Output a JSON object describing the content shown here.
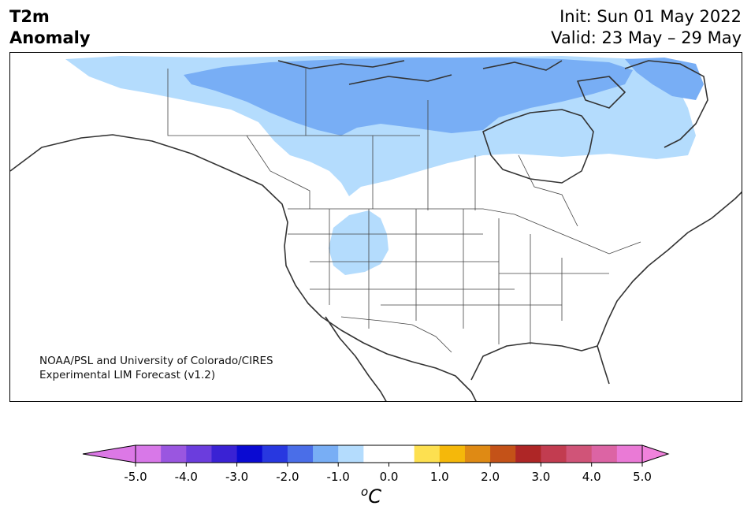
{
  "title": {
    "variable_line1": "T2m",
    "variable_line2": "Anomaly",
    "init_label": "Init: Sun 01 May 2022",
    "valid_label": "Valid: 23 May – 29 May"
  },
  "credit": {
    "line1": "NOAA/PSL and University of Colorado/CIRES",
    "line2": "Experimental LIM Forecast (v1.2)"
  },
  "colorbar": {
    "unit_sup": "o",
    "unit_main": "C",
    "ticks": [
      "-5.0",
      "-4.0",
      "-3.0",
      "-2.0",
      "-1.0",
      "0.0",
      "1.0",
      "2.0",
      "3.0",
      "4.0",
      "5.0"
    ],
    "underflow_color": "#dc78e6",
    "overflow_color": "#f082dc",
    "colors": [
      "#d878e8",
      "#9a56e0",
      "#6b3ddd",
      "#3a22d4",
      "#0a0ad2",
      "#2838e0",
      "#4a6ee8",
      "#78aef5",
      "#b4dcfd",
      "#ffffff",
      "#ffffff",
      "#fde050",
      "#f5b80a",
      "#df8a14",
      "#c45218",
      "#ae2626",
      "#c23c50",
      "#d05478",
      "#dc64a4",
      "#ea7ad6"
    ]
  },
  "map": {
    "anomaly_colors": {
      "light_blue": "#b4dcfd",
      "mid_blue": "#78aef5"
    }
  }
}
